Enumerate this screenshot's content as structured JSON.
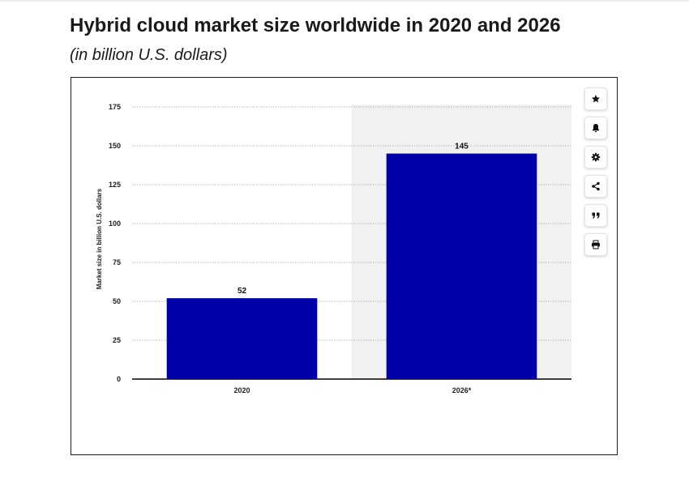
{
  "header": {
    "title": "Hybrid cloud market size worldwide in 2020 and 2026",
    "subtitle": "(in billion U.S. dollars)"
  },
  "toolbar": {
    "buttons": [
      {
        "icon": "star-icon"
      },
      {
        "icon": "bell-icon"
      },
      {
        "icon": "gear-icon"
      },
      {
        "icon": "share-icon"
      },
      {
        "icon": "quote-icon"
      },
      {
        "icon": "print-icon"
      }
    ]
  },
  "chart_data": {
    "type": "bar",
    "categories": [
      "2020",
      "2026*"
    ],
    "values": [
      52,
      145
    ],
    "value_labels": [
      "52",
      "145"
    ],
    "ylabel": "Market size in billion U.S. dollars",
    "xlabel": "",
    "ylim": [
      0,
      175
    ],
    "yticks": [
      0,
      25,
      50,
      75,
      100,
      125,
      150,
      175
    ],
    "ytick_labels": [
      "0",
      "25",
      "50",
      "75",
      "100",
      "125",
      "150",
      "175"
    ],
    "grid": true,
    "forecast_shading": "2026*",
    "colors": {
      "bar": "#0000aa",
      "forecast_background": "#f1f1f1",
      "grid": "#b5b5b5",
      "axis": "#000000"
    }
  }
}
